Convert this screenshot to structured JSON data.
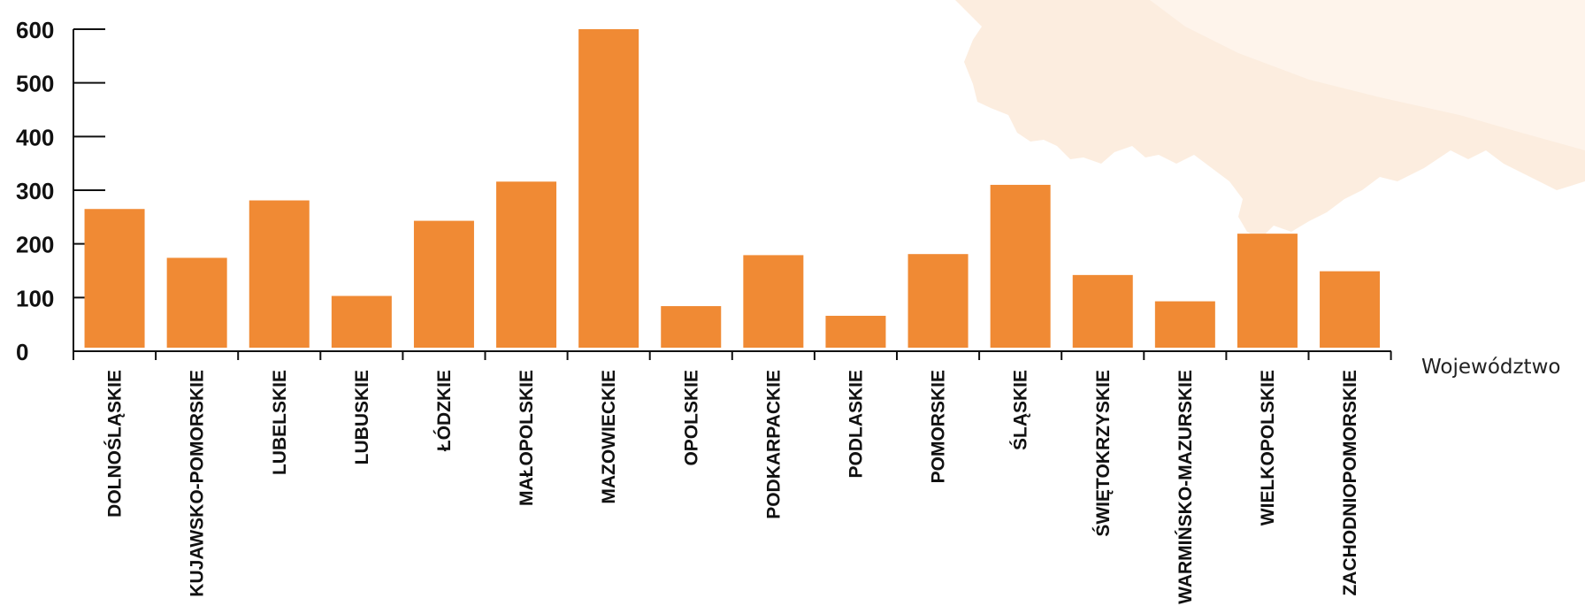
{
  "chart_data": {
    "type": "bar",
    "title": "",
    "xlabel": "Województwo",
    "ylabel": "",
    "ylim": [
      0,
      600
    ],
    "yticks": [
      0,
      100,
      200,
      300,
      400,
      500,
      600
    ],
    "grid": false,
    "legend": "none",
    "bar_color": "#F08A34",
    "background_shape_color": "#FCEBDC",
    "categories": [
      "DOLNOŚLĄSKIE",
      "KUJAWSKO-POMORSKIE",
      "LUBELSKIE",
      "LUBUSKIE",
      "ŁÓDZKIE",
      "MAŁOPOLSKIE",
      "MAZOWIECKIE",
      "OPOLSKIE",
      "PODKARPACKIE",
      "PODLASKIE",
      "POMORSKIE",
      "ŚLĄSKIE",
      "ŚWIĘTOKRZYSKIE",
      "WARMIŃSKO-MAZURSKIE",
      "WIELKOPOLSKIE",
      "ZACHODNIOPOMORSKIE"
    ],
    "values": [
      265,
      174,
      281,
      103,
      243,
      316,
      600,
      84,
      179,
      66,
      181,
      310,
      142,
      93,
      219,
      149
    ]
  }
}
